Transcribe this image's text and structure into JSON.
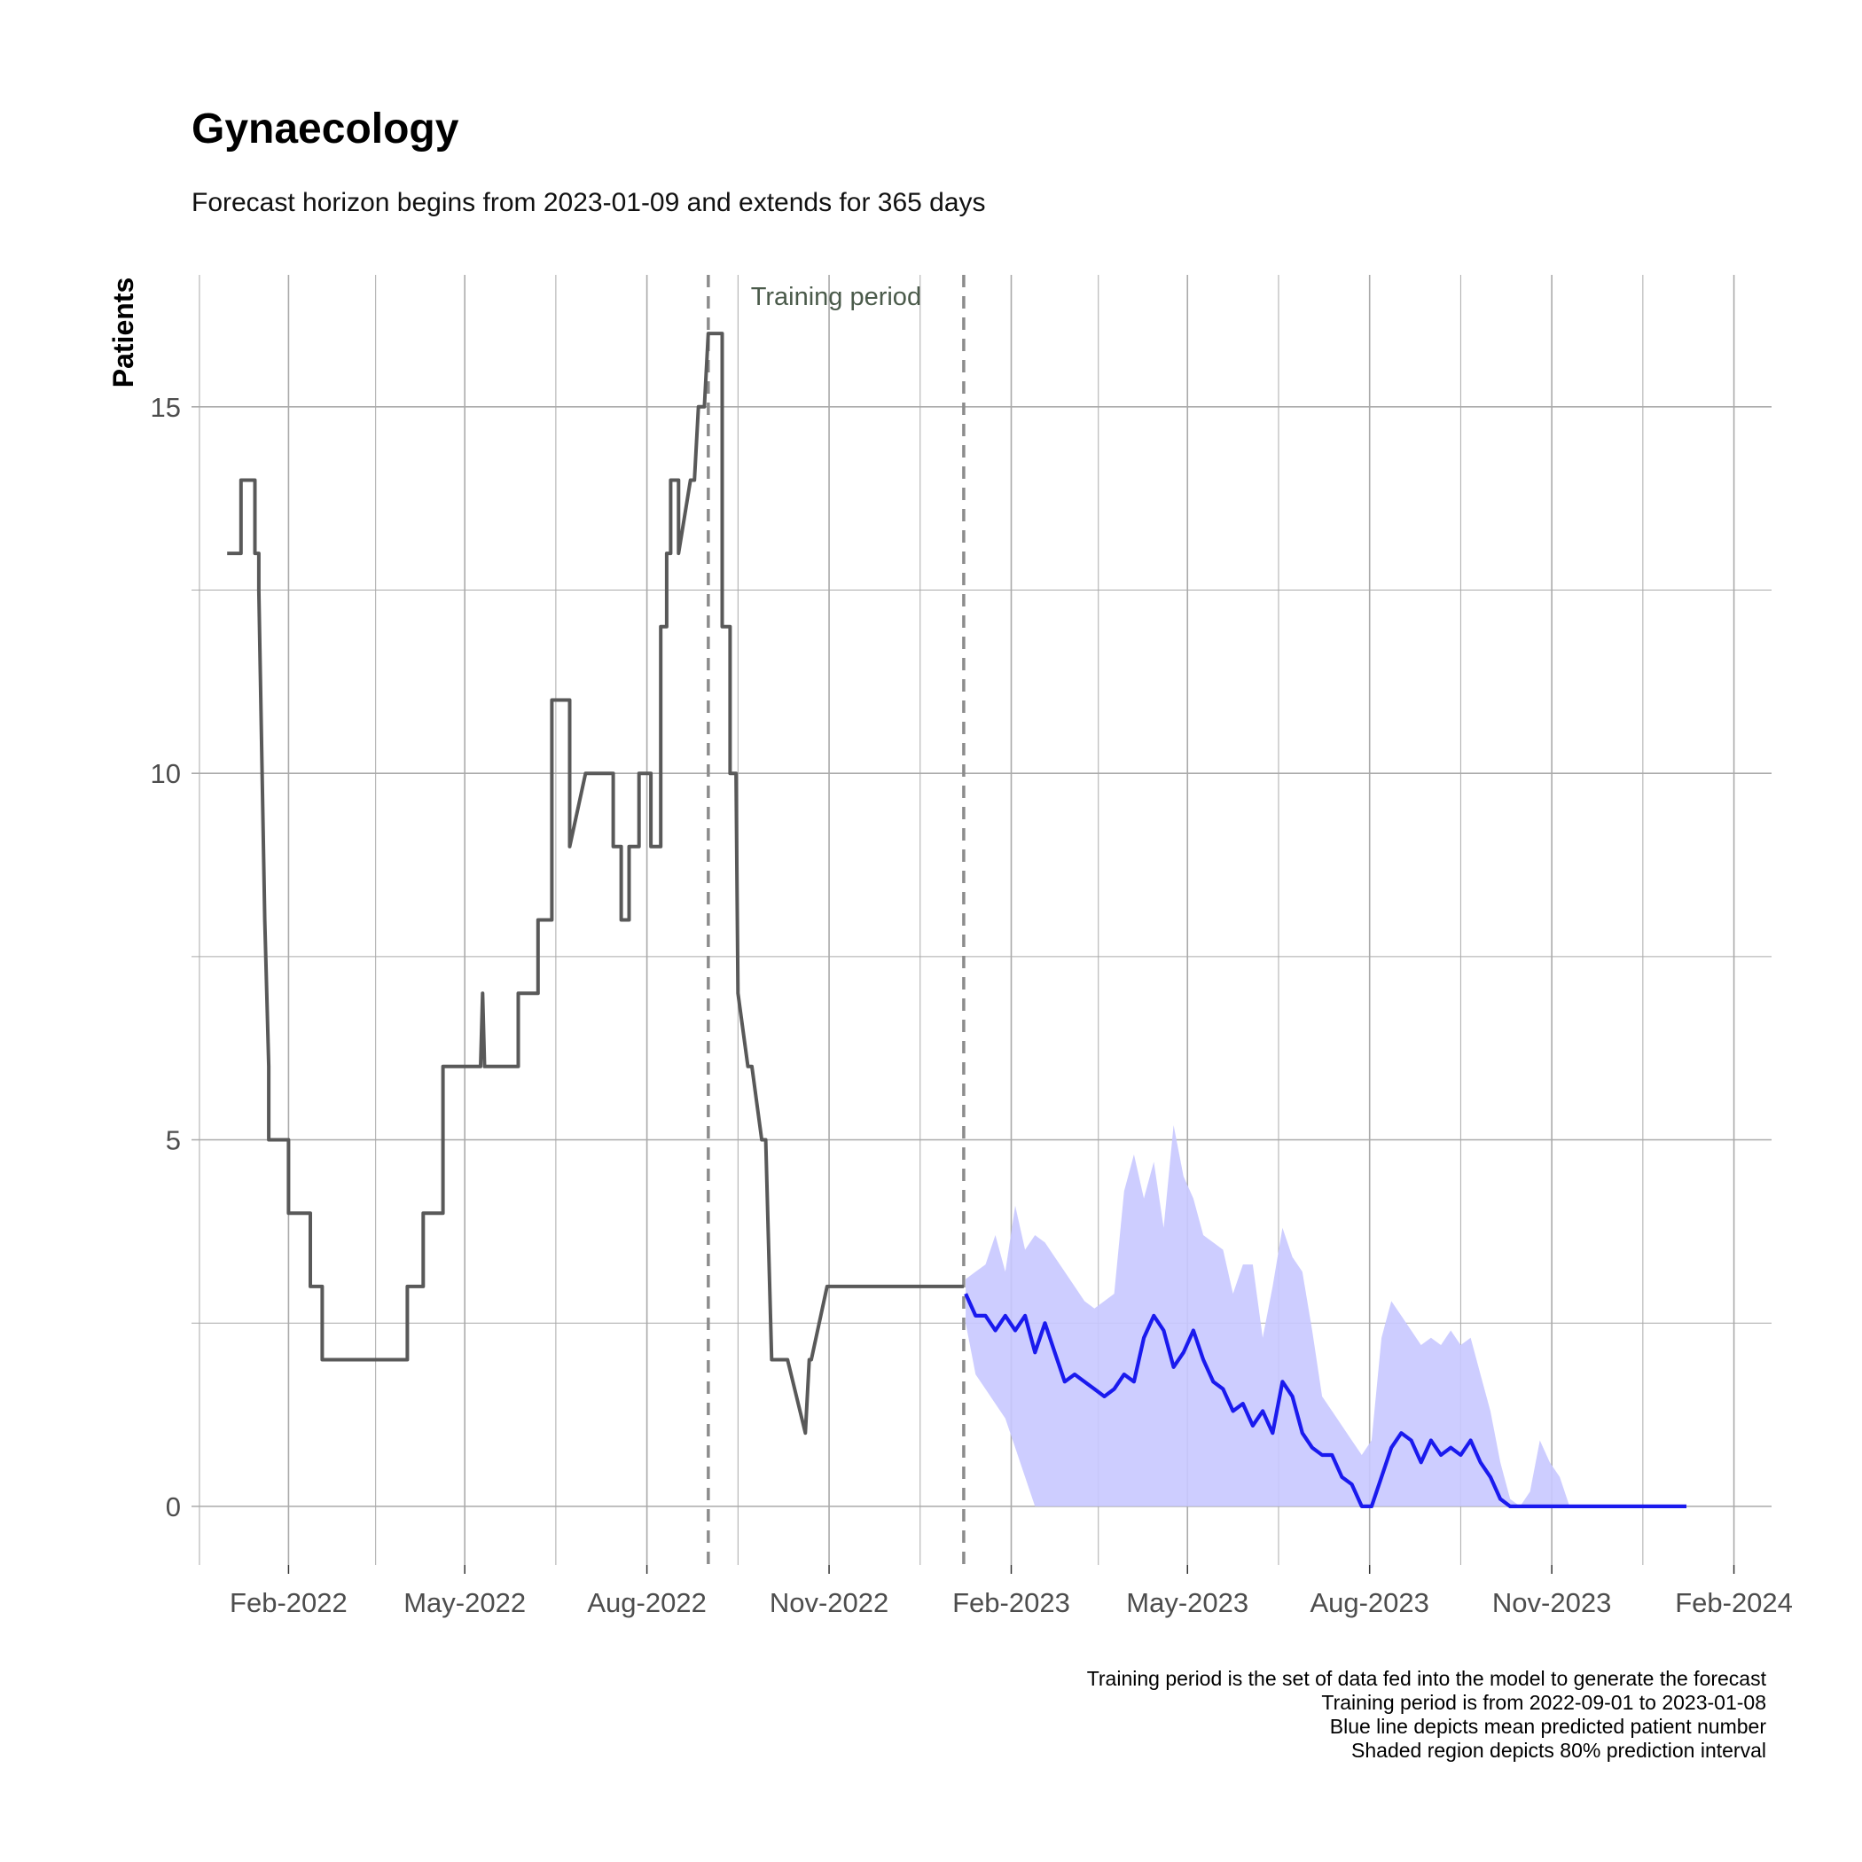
{
  "chart_data": {
    "type": "line",
    "title": "Gynaecology",
    "subtitle": "Forecast horizon begins from 2023-01-09 and extends for 365 days",
    "ylabel": "Patients",
    "xlabel": "",
    "x_ticks": [
      "Feb-2022",
      "May-2022",
      "Aug-2022",
      "Nov-2022",
      "Feb-2023",
      "May-2023",
      "Aug-2023",
      "Nov-2023",
      "Feb-2024"
    ],
    "y_ticks": [
      0,
      5,
      10,
      15
    ],
    "xlim": [
      "2021-12-14",
      "2024-02-20"
    ],
    "ylim": [
      -0.8,
      16.8
    ],
    "grid": true,
    "training_period": {
      "label": "Training period",
      "start": "2022-09-01",
      "end": "2023-01-08"
    },
    "annotations": [
      "Training period is the set of data fed into the model to generate the forecast",
      "Training period is from 2022-09-01 to 2023-01-08",
      "Blue line depicts mean predicted patient number",
      "Shaded region depicts 80% prediction interval"
    ],
    "colors": {
      "observed": "#595959",
      "forecast": "#1a1aee",
      "interval": "#c8c8ff",
      "training_lines": "#8c8c8c",
      "grid": "#aaaaaa"
    },
    "series": [
      {
        "name": "Observed",
        "x": [
          "2022-01-01",
          "2022-01-08",
          "2022-01-08",
          "2022-01-15",
          "2022-01-15",
          "2022-01-17",
          "2022-01-17",
          "2022-01-20",
          "2022-01-22",
          "2022-01-22",
          "2022-02-01",
          "2022-02-01",
          "2022-02-12",
          "2022-02-12",
          "2022-02-18",
          "2022-02-18",
          "2022-04-02",
          "2022-04-02",
          "2022-04-10",
          "2022-04-10",
          "2022-04-20",
          "2022-04-20",
          "2022-05-05",
          "2022-05-09",
          "2022-05-10",
          "2022-05-11",
          "2022-05-28",
          "2022-05-28",
          "2022-06-07",
          "2022-06-07",
          "2022-06-14",
          "2022-06-14",
          "2022-06-23",
          "2022-06-23",
          "2022-07-01",
          "2022-07-02",
          "2022-07-04",
          "2022-07-15",
          "2022-07-15",
          "2022-07-19",
          "2022-07-19",
          "2022-07-23",
          "2022-07-23",
          "2022-07-28",
          "2022-07-28",
          "2022-08-03",
          "2022-08-03",
          "2022-08-08",
          "2022-08-08",
          "2022-08-11",
          "2022-08-11",
          "2022-08-13",
          "2022-08-13",
          "2022-08-17",
          "2022-08-17",
          "2022-08-23",
          "2022-08-25",
          "2022-08-27",
          "2022-08-30",
          "2022-09-01",
          "2022-09-01",
          "2022-09-08",
          "2022-09-08",
          "2022-09-12",
          "2022-09-12",
          "2022-09-15",
          "2022-09-16",
          "2022-09-21",
          "2022-09-23",
          "2022-09-23",
          "2022-09-28",
          "2022-09-30",
          "2022-10-03",
          "2022-10-03",
          "2022-10-06",
          "2022-10-08",
          "2022-10-10",
          "2022-10-11",
          "2022-10-20",
          "2022-10-20",
          "2022-10-22",
          "2022-10-23",
          "2022-10-31",
          "2022-11-30",
          "2022-11-30",
          "2022-12-01",
          "2022-12-06",
          "2022-12-06",
          "2023-01-08"
        ],
        "y": [
          13,
          13,
          14,
          14,
          13,
          13,
          12.5,
          8,
          6,
          5,
          5,
          4,
          4,
          3,
          3,
          2,
          2,
          3,
          3,
          4,
          4,
          6,
          6,
          6,
          7,
          6,
          6,
          7,
          7,
          8,
          8,
          11,
          11,
          9,
          10,
          10,
          10,
          10,
          9,
          9,
          8,
          8,
          9,
          9,
          10,
          10,
          9,
          9,
          12,
          12,
          13,
          13,
          14,
          14,
          13,
          14,
          14,
          15,
          15,
          16,
          16,
          16,
          12,
          12,
          10,
          10,
          7,
          6,
          6,
          6,
          5,
          5,
          2,
          2,
          2,
          2,
          2,
          2,
          1,
          1,
          2,
          2,
          3,
          3,
          3,
          3,
          3,
          3,
          3
        ]
      },
      {
        "name": "Forecast mean",
        "x": [
          "2023-01-09",
          "2023-01-14",
          "2023-01-19",
          "2023-01-24",
          "2023-01-29",
          "2023-02-03",
          "2023-02-08",
          "2023-02-13",
          "2023-02-18",
          "2023-02-23",
          "2023-02-28",
          "2023-03-05",
          "2023-03-10",
          "2023-03-15",
          "2023-03-20",
          "2023-03-25",
          "2023-03-30",
          "2023-04-04",
          "2023-04-09",
          "2023-04-14",
          "2023-04-19",
          "2023-04-24",
          "2023-04-29",
          "2023-05-04",
          "2023-05-09",
          "2023-05-14",
          "2023-05-19",
          "2023-05-24",
          "2023-05-29",
          "2023-06-03",
          "2023-06-08",
          "2023-06-13",
          "2023-06-18",
          "2023-06-23",
          "2023-06-28",
          "2023-07-03",
          "2023-07-08",
          "2023-07-13",
          "2023-07-18",
          "2023-07-23",
          "2023-07-28",
          "2023-08-02",
          "2023-08-07",
          "2023-08-12",
          "2023-08-17",
          "2023-08-22",
          "2023-08-27",
          "2023-09-01",
          "2023-09-06",
          "2023-09-11",
          "2023-09-16",
          "2023-09-21",
          "2023-09-26",
          "2023-10-01",
          "2023-10-06",
          "2023-10-11",
          "2023-10-16",
          "2023-10-21",
          "2023-10-26",
          "2023-10-31",
          "2023-11-05",
          "2023-11-10",
          "2023-11-15",
          "2023-11-20",
          "2023-11-25",
          "2023-11-30",
          "2023-12-05",
          "2023-12-10",
          "2023-12-15",
          "2023-12-20",
          "2023-12-25",
          "2023-12-30",
          "2024-01-04",
          "2024-01-08"
        ],
        "y": [
          2.9,
          2.6,
          2.6,
          2.4,
          2.6,
          2.4,
          2.6,
          2.1,
          2.5,
          2.1,
          1.7,
          1.8,
          1.7,
          1.6,
          1.5,
          1.6,
          1.8,
          1.7,
          2.3,
          2.6,
          2.4,
          1.9,
          2.1,
          2.4,
          2.0,
          1.7,
          1.6,
          1.3,
          1.4,
          1.1,
          1.3,
          1.0,
          1.7,
          1.5,
          1.0,
          0.8,
          0.7,
          0.7,
          0.4,
          0.3,
          0.0,
          0.0,
          0.4,
          0.8,
          1.0,
          0.9,
          0.6,
          0.9,
          0.7,
          0.8,
          0.7,
          0.9,
          0.6,
          0.4,
          0.1,
          0.0,
          0.0,
          0.0,
          0.0,
          0.0,
          0.0,
          0.0,
          0.0,
          0.0,
          0.0,
          0.0,
          0.0,
          0.0,
          0.0,
          0.0,
          0.0,
          0.0,
          0.0,
          0.0
        ]
      }
    ],
    "interval": {
      "name": "80% prediction interval",
      "x": [
        "2023-01-09",
        "2023-01-14",
        "2023-01-19",
        "2023-01-24",
        "2023-01-29",
        "2023-02-03",
        "2023-02-08",
        "2023-02-13",
        "2023-02-18",
        "2023-02-23",
        "2023-02-28",
        "2023-03-05",
        "2023-03-10",
        "2023-03-15",
        "2023-03-20",
        "2023-03-25",
        "2023-03-30",
        "2023-04-04",
        "2023-04-09",
        "2023-04-14",
        "2023-04-19",
        "2023-04-24",
        "2023-04-29",
        "2023-05-04",
        "2023-05-09",
        "2023-05-14",
        "2023-05-19",
        "2023-05-24",
        "2023-05-29",
        "2023-06-03",
        "2023-06-08",
        "2023-06-13",
        "2023-06-18",
        "2023-06-23",
        "2023-06-28",
        "2023-07-03",
        "2023-07-08",
        "2023-07-13",
        "2023-07-18",
        "2023-07-23",
        "2023-07-28",
        "2023-08-02",
        "2023-08-07",
        "2023-08-12",
        "2023-08-17",
        "2023-08-22",
        "2023-08-27",
        "2023-09-01",
        "2023-09-06",
        "2023-09-11",
        "2023-09-16",
        "2023-09-21",
        "2023-09-26",
        "2023-10-01",
        "2023-10-06",
        "2023-10-11",
        "2023-10-16",
        "2023-10-21",
        "2023-10-26",
        "2023-10-31",
        "2023-11-05",
        "2023-11-10",
        "2023-11-15",
        "2023-11-20",
        "2023-11-25",
        "2023-11-30",
        "2023-12-05",
        "2023-12-10",
        "2023-12-15",
        "2023-12-20",
        "2023-12-25",
        "2023-12-30",
        "2024-01-04",
        "2024-01-08"
      ],
      "lower": [
        2.5,
        1.8,
        1.6,
        1.4,
        1.2,
        0.8,
        0.4,
        0.0,
        0.0,
        0.0,
        0.0,
        0.0,
        0.0,
        0.0,
        0.0,
        0.0,
        0.0,
        0.0,
        0.0,
        0.0,
        0.0,
        0.0,
        0.0,
        0.0,
        0.0,
        0.0,
        0.0,
        0.0,
        0.0,
        0.0,
        0.0,
        0.0,
        0.0,
        0.0,
        0.0,
        0.0,
        0.0,
        0.0,
        0.0,
        0.0,
        0.0,
        0.0,
        0.0,
        0.0,
        0.0,
        0.0,
        0.0,
        0.0,
        0.0,
        0.0,
        0.0,
        0.0,
        0.0,
        0.0,
        0.0,
        0.0,
        0.0,
        0.0,
        0.0,
        0.0,
        0.0,
        0.0,
        0.0,
        0.0,
        0.0,
        0.0,
        0.0,
        0.0,
        0.0,
        0.0,
        0.0,
        0.0,
        0.0,
        0.0
      ],
      "upper": [
        3.1,
        3.2,
        3.3,
        3.7,
        3.2,
        4.1,
        3.5,
        3.7,
        3.6,
        3.4,
        3.2,
        3.0,
        2.8,
        2.7,
        2.8,
        2.9,
        4.3,
        4.8,
        4.2,
        4.7,
        3.8,
        5.2,
        4.5,
        4.2,
        3.7,
        3.6,
        3.5,
        2.9,
        3.3,
        3.3,
        2.3,
        3.0,
        3.8,
        3.4,
        3.2,
        2.4,
        1.5,
        1.3,
        1.1,
        0.9,
        0.7,
        0.9,
        2.3,
        2.8,
        2.6,
        2.4,
        2.2,
        2.3,
        2.2,
        2.4,
        2.2,
        2.3,
        1.8,
        1.3,
        0.6,
        0.1,
        0.0,
        0.2,
        0.9,
        0.6,
        0.4,
        0.0,
        0.0,
        0.0,
        0.0,
        0.0,
        0.0,
        0.0,
        0.0,
        0.0,
        0.0,
        0.0,
        0.0,
        0.0
      ]
    }
  }
}
